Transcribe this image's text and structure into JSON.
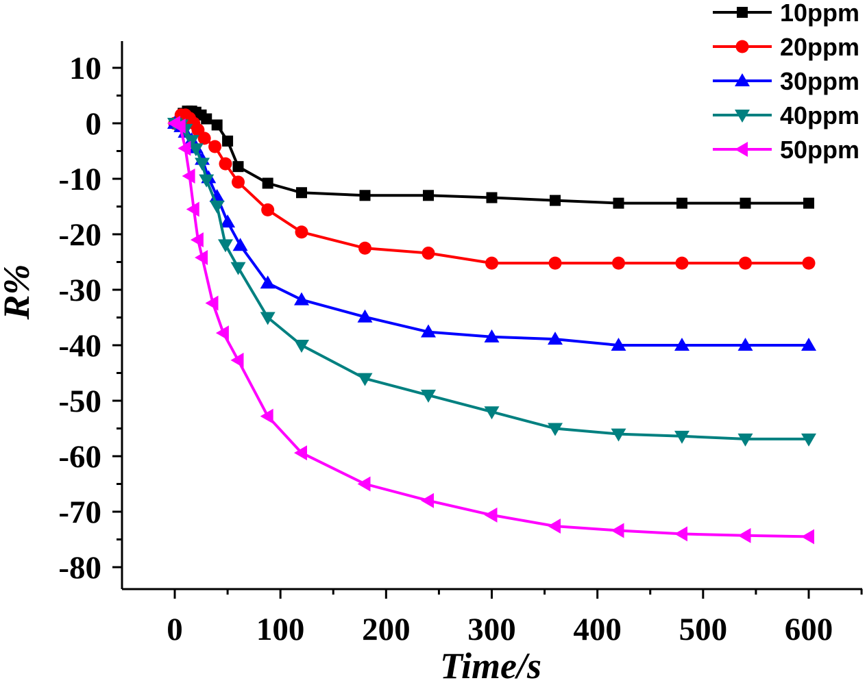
{
  "chart_data": {
    "type": "line",
    "title": "",
    "xlabel": "Time/s",
    "ylabel": "R%",
    "xlim": [
      -50,
      650
    ],
    "ylim": [
      -85,
      15
    ],
    "xticks": [
      0,
      100,
      200,
      300,
      400,
      500,
      600
    ],
    "yticks": [
      10,
      0,
      -10,
      -20,
      -30,
      -40,
      -50,
      -60,
      -70,
      -80
    ],
    "legend_position": "top-right",
    "series": [
      {
        "name": "10ppm",
        "color": "#000000",
        "marker": "square",
        "x": [
          0,
          8,
          12,
          16,
          20,
          25,
          30,
          40,
          50,
          60,
          88,
          120,
          180,
          240,
          300,
          360,
          420,
          480,
          540,
          600
        ],
        "y": [
          0,
          1.8,
          2.2,
          2.2,
          2.0,
          1.5,
          0.8,
          -0.3,
          -3.2,
          -7.8,
          -10.8,
          -12.5,
          -13.0,
          -13.0,
          -13.4,
          -13.9,
          -14.4,
          -14.4,
          -14.4,
          -14.4
        ]
      },
      {
        "name": "20ppm",
        "color": "#ff0000",
        "marker": "circle",
        "x": [
          0,
          6,
          10,
          14,
          18,
          22,
          28,
          38,
          48,
          60,
          88,
          120,
          180,
          240,
          300,
          360,
          420,
          480,
          540,
          600
        ],
        "y": [
          0,
          1.5,
          1.5,
          0.9,
          0,
          -1.2,
          -2.7,
          -4.2,
          -7.3,
          -10.6,
          -15.6,
          -19.6,
          -22.5,
          -23.4,
          -25.2,
          -25.2,
          -25.2,
          -25.2,
          -25.2,
          -25.2
        ]
      },
      {
        "name": "30ppm",
        "color": "#0000ff",
        "marker": "triangle-up",
        "x": [
          0,
          6,
          10,
          16,
          20,
          26,
          32,
          40,
          50,
          62,
          88,
          120,
          180,
          240,
          300,
          360,
          420,
          480,
          540,
          600
        ],
        "y": [
          0,
          -0.6,
          -1.6,
          -3.0,
          -4.4,
          -6.5,
          -9.8,
          -13.2,
          -17.8,
          -22.0,
          -28.8,
          -31.8,
          -34.9,
          -37.6,
          -38.5,
          -38.9,
          -40.0,
          -40.0,
          -40.0,
          -40.0
        ]
      },
      {
        "name": "40ppm",
        "color": "#008080",
        "marker": "triangle-down",
        "x": [
          0,
          6,
          10,
          16,
          20,
          26,
          30,
          40,
          48,
          60,
          88,
          120,
          180,
          240,
          300,
          360,
          420,
          480,
          540,
          600
        ],
        "y": [
          0,
          -0.3,
          -1.1,
          -3.1,
          -4.6,
          -7.2,
          -10.2,
          -14.9,
          -21.9,
          -26.0,
          -35.0,
          -40.0,
          -46.0,
          -49.0,
          -52.0,
          -55.0,
          -56.0,
          -56.4,
          -56.9,
          -56.9
        ]
      },
      {
        "name": "50ppm",
        "color": "#ff00ff",
        "marker": "triangle-left",
        "x": [
          0,
          5,
          10,
          14,
          18,
          22,
          26,
          36,
          46,
          60,
          88,
          120,
          180,
          240,
          300,
          360,
          420,
          480,
          540,
          600
        ],
        "y": [
          0,
          -0.5,
          -4.5,
          -9.5,
          -15.5,
          -21.0,
          -24.2,
          -32.4,
          -37.8,
          -42.7,
          -52.8,
          -59.4,
          -65.0,
          -68.0,
          -70.6,
          -72.6,
          -73.4,
          -74.0,
          -74.3,
          -74.5
        ]
      }
    ]
  }
}
